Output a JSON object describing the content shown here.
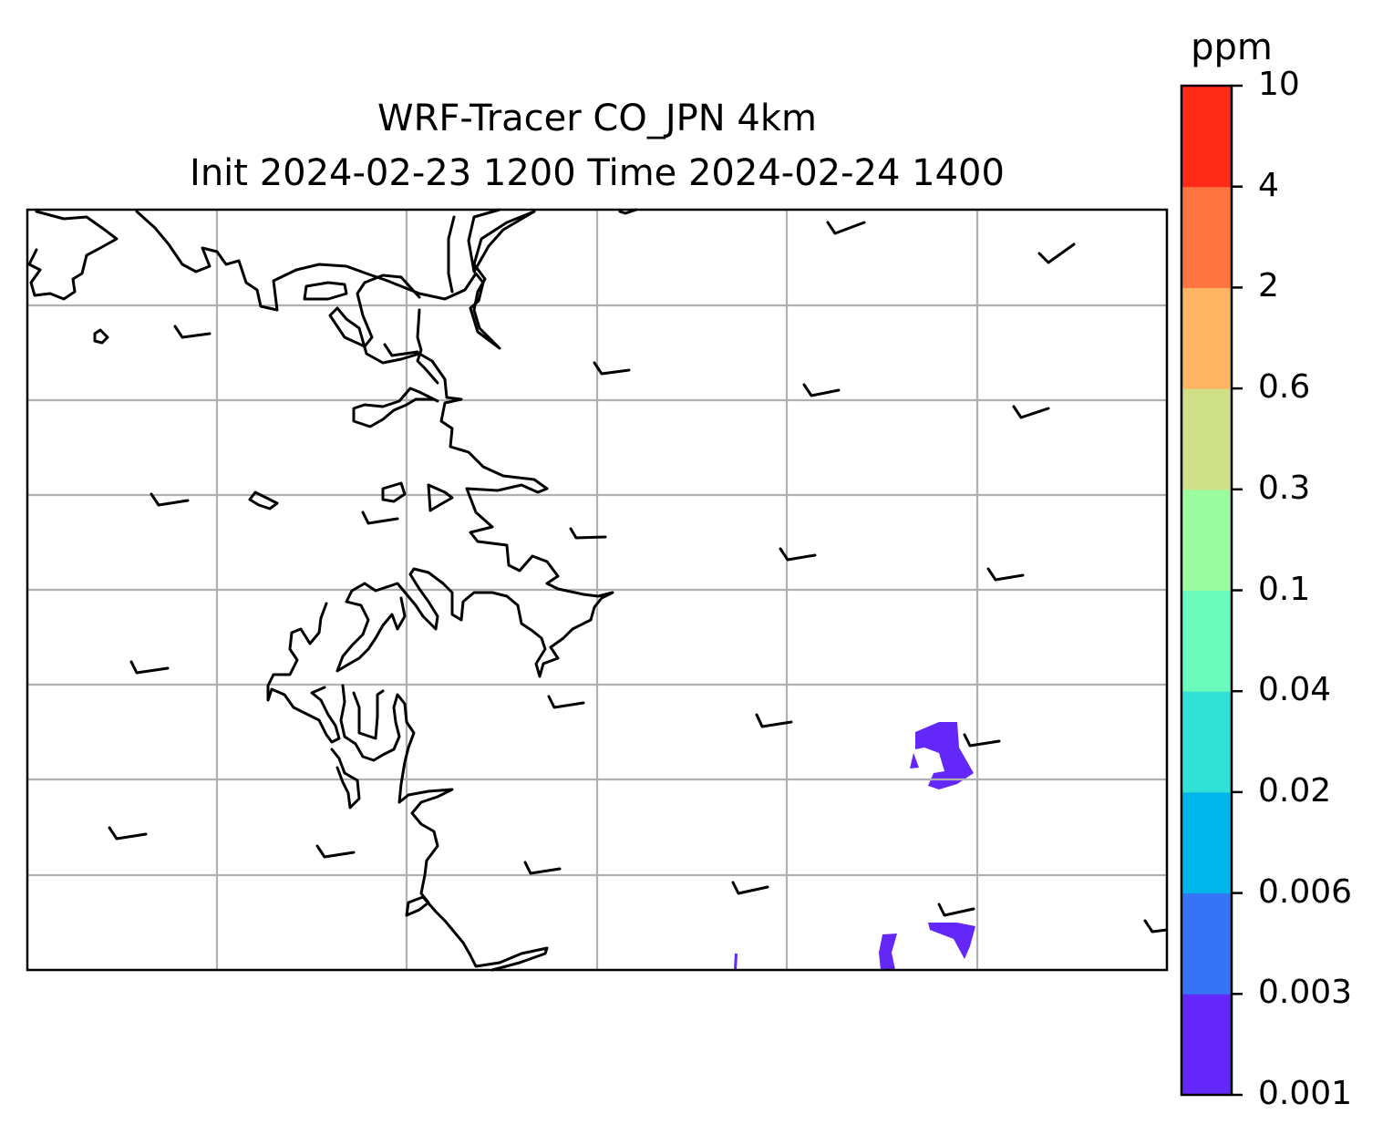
{
  "map": {
    "title_line1": "WRF-Tracer CO_JPN 4km",
    "title_line2": "Init 2024-02-23 1200 Time 2024-02-24 1400",
    "plume_color": "#6427f9"
  },
  "colorbar": {
    "unit": "ppm",
    "levels": [
      "0.001",
      "0.003",
      "0.006",
      "0.02",
      "0.04",
      "0.1",
      "0.3",
      "0.6",
      "2",
      "4",
      "10"
    ],
    "colors": [
      "#6427f9",
      "#3673f5",
      "#00b4ec",
      "#31e1d6",
      "#6bfcbd",
      "#9cfca2",
      "#d0e086",
      "#feb463",
      "#ff7440",
      "#ff2a18"
    ]
  }
}
